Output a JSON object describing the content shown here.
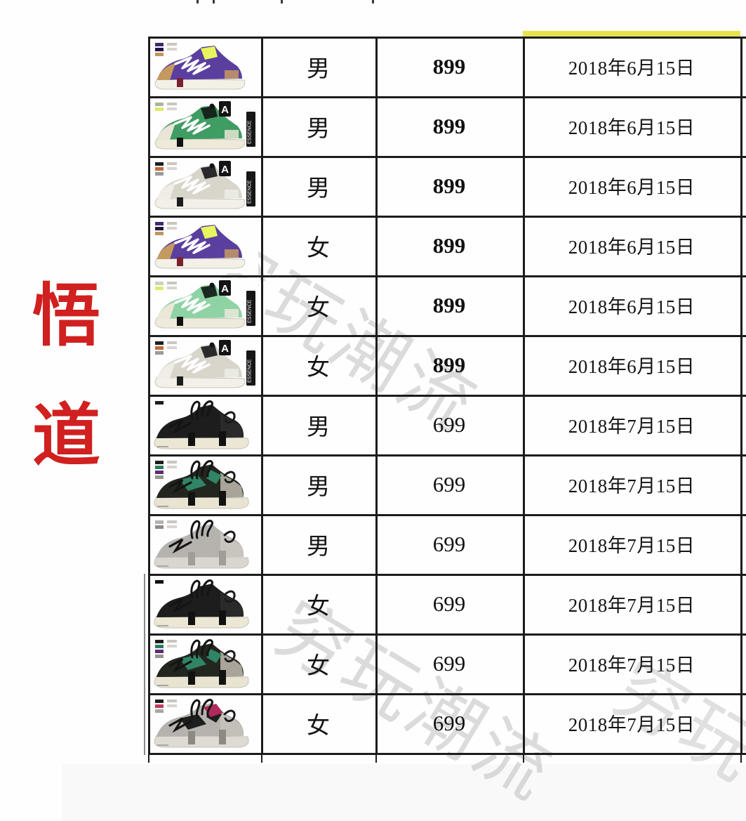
{
  "left_title": {
    "chars": [
      "悟",
      "道"
    ],
    "color": "#d02020"
  },
  "watermark": {
    "color": "#b9b9b9",
    "instances": [
      {
        "text": "穷玩潮流"
      },
      {
        "text": "穷玩潮流"
      },
      {
        "text": "穷玩"
      }
    ]
  },
  "highlight_color": "#e6e34f",
  "table": {
    "columns": [
      "product-image",
      "gender",
      "price",
      "release-date"
    ],
    "rows": [
      {
        "gender": "男",
        "price": "899",
        "bold_price": true,
        "date": "2018年6月15日",
        "shoe": {
          "model": "A",
          "colorway": "purple-tan",
          "badge": false,
          "badge_letter": "",
          "side_text": "",
          "legend": [
            "#3f2a6e",
            "#241740",
            "#bf9660"
          ],
          "upper": "#5b3f9e",
          "toe": "#c49a5f",
          "collar": "#e8f55e",
          "sole": "#f3f0e7",
          "accent": "#7a2330"
        }
      },
      {
        "gender": "男",
        "price": "899",
        "bold_price": true,
        "date": "2018年6月15日",
        "shoe": {
          "model": "A",
          "colorway": "green-black-cream",
          "badge": true,
          "badge_letter": "A",
          "side_text": "ESSENCE",
          "legend": [
            "#aab4a4",
            "#dfe96d"
          ],
          "upper": "#3f9d63",
          "toe": "#e9e5d6",
          "collar": "#17251c",
          "sole": "#eee9d8",
          "accent": "#111111"
        }
      },
      {
        "gender": "男",
        "price": "899",
        "bold_price": true,
        "date": "2018年6月15日",
        "shoe": {
          "model": "A",
          "colorway": "white-black",
          "badge": true,
          "badge_letter": "A",
          "side_text": "ESSENCE",
          "legend": [
            "#1d1d1d",
            "#c06a3a",
            "#9a9a9a"
          ],
          "upper": "#d8d5cb",
          "toe": "#efede6",
          "collar": "#2a2a2a",
          "sole": "#f2f0e9",
          "accent": "#1d1d1d"
        }
      },
      {
        "gender": "女",
        "price": "899",
        "bold_price": true,
        "date": "2018年6月15日",
        "shoe": {
          "model": "A",
          "colorway": "purple-tan",
          "badge": false,
          "badge_letter": "",
          "side_text": "",
          "legend": [
            "#3f2a6e",
            "#241740",
            "#bf9660"
          ],
          "upper": "#5b3f9e",
          "toe": "#c49a5f",
          "collar": "#e8f55e",
          "sole": "#f3f0e7",
          "accent": "#7a2330"
        }
      },
      {
        "gender": "女",
        "price": "899",
        "bold_price": true,
        "date": "2018年6月15日",
        "shoe": {
          "model": "A",
          "colorway": "mint-green-cream",
          "badge": true,
          "badge_letter": "A",
          "side_text": "ESSENCE",
          "legend": [
            "#c9d4be",
            "#dfe96d"
          ],
          "upper": "#8fd3a5",
          "toe": "#ebe7d8",
          "collar": "#1b2a20",
          "sole": "#efeadb",
          "accent": "#111111"
        }
      },
      {
        "gender": "女",
        "price": "899",
        "bold_price": true,
        "date": "2018年6月15日",
        "shoe": {
          "model": "A",
          "colorway": "white-black",
          "badge": true,
          "badge_letter": "A",
          "side_text": "ESSENCE",
          "legend": [
            "#1d1d1d",
            "#c06a3a",
            "#9a9a9a"
          ],
          "upper": "#d8d5cb",
          "toe": "#efede6",
          "collar": "#2a2a2a",
          "sole": "#f2f0e9",
          "accent": "#1d1d1d"
        }
      },
      {
        "gender": "男",
        "price": "699",
        "bold_price": false,
        "date": "2018年7月15日",
        "shoe": {
          "model": "B",
          "colorway": "black",
          "legend": [
            "#1d1d1d"
          ],
          "upper": "#1d1d1d",
          "patch": "",
          "rear": "#2a2a2a",
          "collar": "",
          "sole": "#ece7d4",
          "strap": "#111111"
        }
      },
      {
        "gender": "男",
        "price": "699",
        "bold_price": false,
        "date": "2018年7月15日",
        "shoe": {
          "model": "B",
          "colorway": "black-green-grey",
          "legend": [
            "#1d1d1d",
            "#2f7d5e",
            "#5c2d7a",
            "#9a958c"
          ],
          "upper": "#23261f",
          "patch": "#2f8566",
          "rear": "#a9a49a",
          "collar": "",
          "sole": "#e9e4d1",
          "strap": "#121212"
        }
      },
      {
        "gender": "男",
        "price": "699",
        "bold_price": false,
        "date": "2018年7月15日",
        "shoe": {
          "model": "B",
          "colorway": "grey",
          "legend": [
            "#b5b2ad",
            "#8f8c86"
          ],
          "upper": "#b6b3ae",
          "patch": "",
          "rear": "#c8c5bf",
          "collar": "",
          "sole": "#d9d6cf",
          "strap": "#a09d97"
        }
      },
      {
        "gender": "女",
        "price": "699",
        "bold_price": false,
        "date": "2018年7月15日",
        "shoe": {
          "model": "B",
          "colorway": "black",
          "legend": [
            "#111111"
          ],
          "upper": "#1d1d1d",
          "patch": "",
          "rear": "#2a2a2a",
          "collar": "",
          "sole": "#ece7d4",
          "strap": "#111111"
        }
      },
      {
        "gender": "女",
        "price": "699",
        "bold_price": false,
        "date": "2018年7月15日",
        "shoe": {
          "model": "B",
          "colorway": "black-green-grey",
          "legend": [
            "#1d1d1d",
            "#2f7d5e",
            "#5c2d7a",
            "#9a958c"
          ],
          "upper": "#23261f",
          "patch": "#2f8566",
          "rear": "#a9a49a",
          "collar": "",
          "sole": "#e9e4d1",
          "strap": "#121212"
        }
      },
      {
        "gender": "女",
        "price": "699",
        "bold_price": false,
        "date": "2018年7月15日",
        "shoe": {
          "model": "B",
          "colorway": "grey-magenta",
          "legend": [
            "#1d1d1d",
            "#c23a5e",
            "#a9a6a0"
          ],
          "upper": "#b6b3ae",
          "patch": "#1e1e1e",
          "rear": "#c3c0ba",
          "collar": "#b02a5c",
          "sole": "#dedbd4",
          "strap": "#8d8a84"
        }
      }
    ]
  }
}
